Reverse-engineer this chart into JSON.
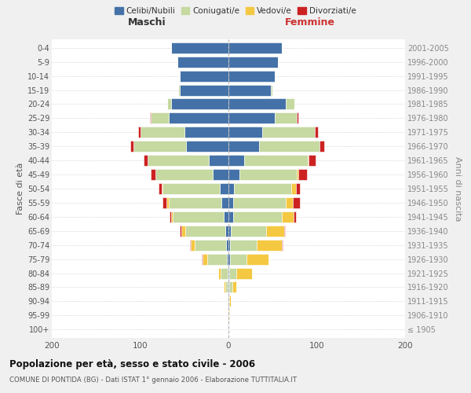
{
  "age_groups": [
    "100+",
    "95-99",
    "90-94",
    "85-89",
    "80-84",
    "75-79",
    "70-74",
    "65-69",
    "60-64",
    "55-59",
    "50-54",
    "45-49",
    "40-44",
    "35-39",
    "30-34",
    "25-29",
    "20-24",
    "15-19",
    "10-14",
    "5-9",
    "0-4"
  ],
  "birth_years": [
    "≤ 1905",
    "1906-1910",
    "1911-1915",
    "1916-1920",
    "1921-1925",
    "1926-1930",
    "1931-1935",
    "1936-1940",
    "1941-1945",
    "1946-1950",
    "1951-1955",
    "1956-1960",
    "1961-1965",
    "1966-1970",
    "1971-1975",
    "1976-1980",
    "1981-1985",
    "1986-1990",
    "1991-1995",
    "1996-2000",
    "2001-2005"
  ],
  "males": {
    "celibi": [
      0,
      0,
      0,
      1,
      1,
      2,
      3,
      4,
      5,
      8,
      10,
      18,
      22,
      48,
      50,
      68,
      65,
      55,
      55,
      58,
      65
    ],
    "coniugati": [
      0,
      0,
      1,
      3,
      8,
      22,
      35,
      45,
      58,
      60,
      65,
      65,
      70,
      60,
      50,
      20,
      4,
      2,
      0,
      0,
      0
    ],
    "vedovi": [
      0,
      0,
      0,
      1,
      3,
      5,
      5,
      4,
      2,
      2,
      1,
      0,
      0,
      0,
      0,
      0,
      0,
      0,
      0,
      0,
      0
    ],
    "divorziati": [
      0,
      0,
      0,
      0,
      0,
      1,
      1,
      2,
      2,
      5,
      3,
      5,
      4,
      3,
      2,
      1,
      0,
      0,
      0,
      0,
      0
    ]
  },
  "females": {
    "nubili": [
      0,
      0,
      0,
      1,
      1,
      2,
      2,
      3,
      5,
      5,
      6,
      12,
      18,
      35,
      38,
      52,
      65,
      48,
      52,
      56,
      60
    ],
    "coniugate": [
      0,
      0,
      1,
      3,
      8,
      18,
      30,
      40,
      55,
      60,
      65,
      65,
      72,
      68,
      60,
      25,
      10,
      2,
      0,
      0,
      0
    ],
    "vedove": [
      0,
      1,
      2,
      5,
      18,
      25,
      28,
      20,
      14,
      8,
      5,
      2,
      1,
      0,
      0,
      0,
      0,
      0,
      0,
      0,
      0
    ],
    "divorziate": [
      0,
      0,
      0,
      0,
      0,
      0,
      1,
      1,
      2,
      8,
      5,
      10,
      8,
      5,
      3,
      2,
      0,
      0,
      0,
      0,
      0
    ]
  },
  "colors": {
    "celibi": "#4472a8",
    "coniugati": "#c5d9a0",
    "vedovi": "#f5c842",
    "divorziati": "#cc2222"
  },
  "xlim": 200,
  "title": "Popolazione per età, sesso e stato civile - 2006",
  "subtitle": "COMUNE DI PONTIDA (BG) - Dati ISTAT 1° gennaio 2006 - Elaborazione TUTTITALIA.IT",
  "ylabel_left": "Fasce di età",
  "ylabel_right": "Anni di nascita",
  "xlabel_maschi": "Maschi",
  "xlabel_femmine": "Femmine",
  "legend_labels": [
    "Celibi/Nubili",
    "Coniugati/e",
    "Vedovi/e",
    "Divorziati/e"
  ],
  "bg_color": "#f0f0f0",
  "plot_bg_color": "#ffffff"
}
